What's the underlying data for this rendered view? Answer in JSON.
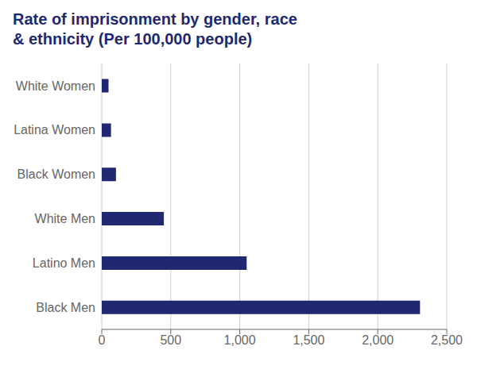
{
  "chart_data": {
    "type": "bar",
    "orientation": "horizontal",
    "title": "Rate of imprisonment by gender, race\n& ethnicity (Per 100,000 people)",
    "categories": [
      "White Women",
      "Latina Women",
      "Black Women",
      "White Men",
      "Latino Men",
      "Black Men"
    ],
    "values": [
      49,
      67,
      103,
      450,
      1050,
      2306
    ],
    "color": "#1f2870",
    "xlim": [
      0,
      2500
    ],
    "xticks": [
      0,
      500,
      {
        "value": 1000,
        "label": "1,000"
      },
      {
        "value": 1500,
        "label": "1,500"
      },
      {
        "value": 2000,
        "label": "2,000"
      },
      {
        "value": 2500,
        "label": "2,500"
      }
    ],
    "grid": true
  }
}
